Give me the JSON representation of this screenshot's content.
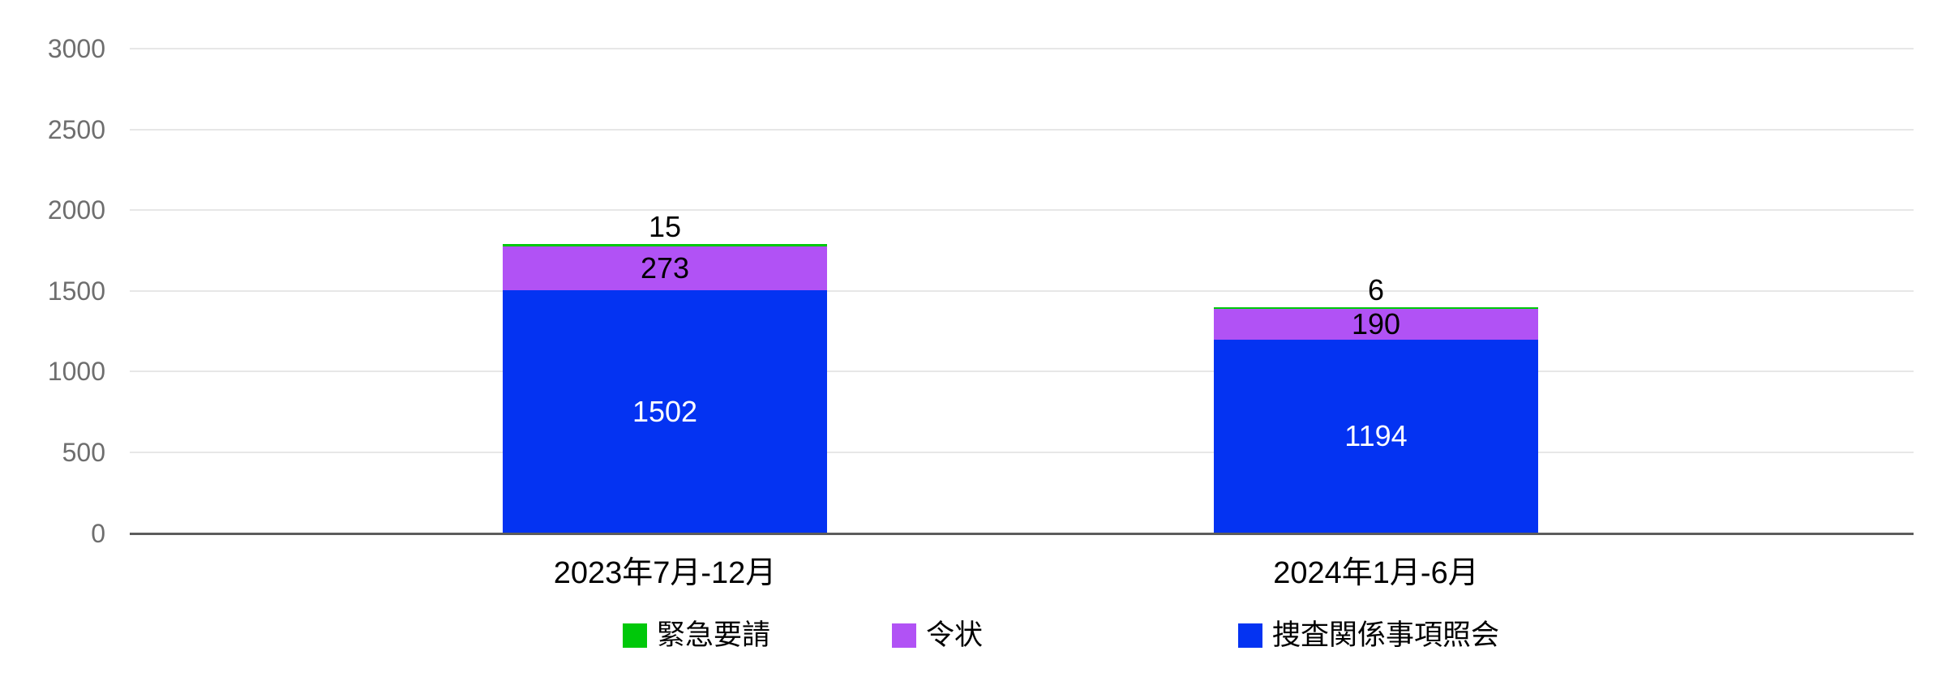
{
  "chart_data": {
    "type": "bar",
    "stacked": true,
    "title": "",
    "xlabel": "",
    "ylabel": "",
    "categories": [
      "2023年7月-12月",
      "2024年1月-6月"
    ],
    "series": [
      {
        "name": "捜査関係事項照会",
        "color": "#0433F2",
        "label_color": "#FFFFFF",
        "values": [
          1502,
          1194
        ]
      },
      {
        "name": "令状",
        "color": "#B152F5",
        "label_color": "#000000",
        "values": [
          273,
          190
        ]
      },
      {
        "name": "緊急要請",
        "color": "#00C80A",
        "label_color": "#000000",
        "values": [
          15,
          6
        ]
      }
    ],
    "totals": [
      1790,
      1390
    ],
    "ylim": [
      0,
      3000
    ],
    "yticks": [
      0,
      500,
      1000,
      1500,
      2000,
      2500,
      3000
    ],
    "grid": true,
    "legend_position": "bottom",
    "legend_order": [
      "緊急要請",
      "令状",
      "捜査関係事項照会"
    ]
  },
  "colors": {
    "background": "#FFFFFF",
    "gridline": "#E7E7E7",
    "axis_line": "#5C5C5C",
    "ytick_text": "#6E6E6E",
    "category_text": "#000000"
  }
}
